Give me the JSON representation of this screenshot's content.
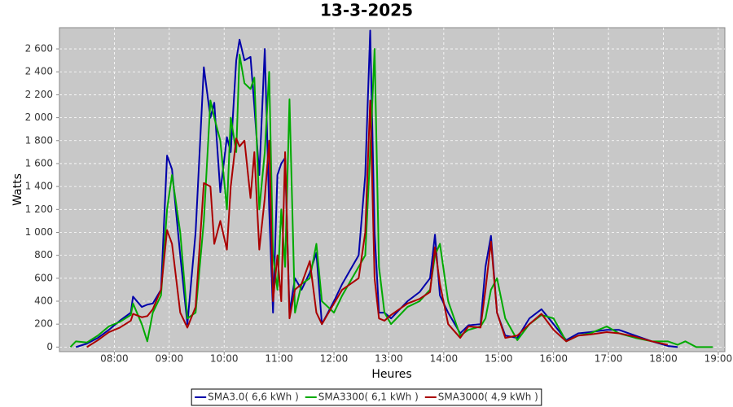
{
  "chart_data": {
    "type": "line",
    "title": "13-3-2025",
    "x_label": "Heures",
    "y_label": "Watts",
    "x": [
      7.2,
      7.3,
      7.5,
      7.7,
      7.9,
      8.1,
      8.3,
      8.34,
      8.5,
      8.6,
      8.7,
      8.85,
      8.96,
      9.05,
      9.2,
      9.33,
      9.48,
      9.63,
      9.75,
      9.82,
      9.93,
      10.05,
      10.12,
      10.22,
      10.28,
      10.37,
      10.48,
      10.55,
      10.64,
      10.74,
      10.82,
      10.89,
      10.97,
      11.04,
      11.11,
      11.19,
      11.29,
      11.41,
      11.56,
      11.68,
      11.78,
      12.0,
      12.15,
      12.45,
      12.57,
      12.66,
      12.74,
      12.82,
      12.92,
      13.04,
      13.34,
      13.56,
      13.75,
      13.84,
      13.93,
      14.08,
      14.3,
      14.45,
      14.67,
      14.76,
      14.86,
      14.97,
      15.12,
      15.34,
      15.56,
      15.78,
      16.0,
      16.23,
      16.45,
      16.67,
      16.97,
      17.19,
      17.49,
      17.79,
      18.08,
      18.26,
      18.4,
      18.6,
      18.9
    ],
    "series": [
      {
        "name": "SMA3.0( 6,6 kWh )",
        "color": "#0000aa",
        "values": [
          null,
          0,
          30,
          80,
          150,
          230,
          300,
          440,
          350,
          370,
          380,
          500,
          1670,
          1550,
          800,
          200,
          1000,
          2440,
          2000,
          2130,
          1350,
          1830,
          1700,
          2500,
          2680,
          2500,
          2530,
          2100,
          1500,
          2600,
          1200,
          300,
          1500,
          1600,
          1650,
          300,
          600,
          500,
          650,
          820,
          200,
          400,
          550,
          800,
          1500,
          2760,
          1000,
          300,
          300,
          250,
          400,
          480,
          600,
          980,
          450,
          300,
          120,
          190,
          200,
          700,
          970,
          300,
          100,
          80,
          250,
          330,
          200,
          60,
          120,
          130,
          150,
          150,
          100,
          50,
          10,
          0,
          null,
          null,
          null
        ]
      },
      {
        "name": "SMA3300( 6,1 kWh )",
        "color": "#00aa00",
        "values": [
          0,
          50,
          40,
          100,
          180,
          220,
          280,
          380,
          200,
          50,
          300,
          450,
          1200,
          1500,
          1000,
          250,
          300,
          1100,
          2150,
          2000,
          1800,
          1200,
          2000,
          1700,
          2550,
          2300,
          2250,
          2350,
          1200,
          1700,
          2400,
          800,
          500,
          1200,
          700,
          2160,
          300,
          550,
          600,
          900,
          400,
          300,
          450,
          700,
          800,
          1700,
          2600,
          700,
          300,
          200,
          350,
          400,
          500,
          800,
          900,
          400,
          100,
          150,
          180,
          250,
          500,
          600,
          250,
          60,
          200,
          280,
          250,
          50,
          100,
          120,
          180,
          120,
          80,
          50,
          50,
          20,
          50,
          0,
          0
        ]
      },
      {
        "name": "SMA3000( 4,9 kWh )",
        "color": "#aa0000",
        "values": [
          null,
          null,
          0,
          60,
          130,
          170,
          230,
          290,
          260,
          270,
          330,
          500,
          1020,
          900,
          300,
          170,
          350,
          1430,
          1400,
          900,
          1100,
          850,
          1400,
          1820,
          1750,
          1800,
          1300,
          1700,
          850,
          1300,
          1800,
          400,
          800,
          400,
          1700,
          250,
          500,
          550,
          750,
          300,
          200,
          380,
          500,
          600,
          1000,
          2150,
          600,
          250,
          230,
          280,
          380,
          420,
          480,
          870,
          550,
          200,
          80,
          180,
          170,
          500,
          920,
          300,
          80,
          100,
          200,
          290,
          150,
          50,
          100,
          110,
          130,
          120,
          90,
          50,
          20,
          null,
          null,
          null,
          null
        ]
      }
    ],
    "xlim": [
      7.0,
      19.12
    ],
    "xticks": [
      {
        "value": 8,
        "label": "08:00"
      },
      {
        "value": 9,
        "label": "09:00"
      },
      {
        "value": 10,
        "label": "10:00"
      },
      {
        "value": 11,
        "label": "11:00"
      },
      {
        "value": 12,
        "label": "12:00"
      },
      {
        "value": 13,
        "label": "13:00"
      },
      {
        "value": 14,
        "label": "14:00"
      },
      {
        "value": 15,
        "label": "15:00"
      },
      {
        "value": 16,
        "label": "16:00"
      },
      {
        "value": 17,
        "label": "17:00"
      },
      {
        "value": 18,
        "label": "18:00"
      },
      {
        "value": 19,
        "label": "19:00"
      }
    ],
    "ylim": [
      -40,
      2785
    ],
    "yticks": [
      0,
      200,
      400,
      600,
      800,
      {
        "value": 1000,
        "label": "1 000"
      },
      {
        "value": 1200,
        "label": "1 200"
      },
      {
        "value": 1400,
        "label": "1 400"
      },
      {
        "value": 1600,
        "label": "1 600"
      },
      {
        "value": 1800,
        "label": "1 800"
      },
      {
        "value": 2000,
        "label": "2 000"
      },
      {
        "value": 2200,
        "label": "2 200"
      },
      {
        "value": 2400,
        "label": "2 400"
      },
      {
        "value": 2600,
        "label": "2 600"
      }
    ],
    "grid": true,
    "legend": "bottom"
  }
}
